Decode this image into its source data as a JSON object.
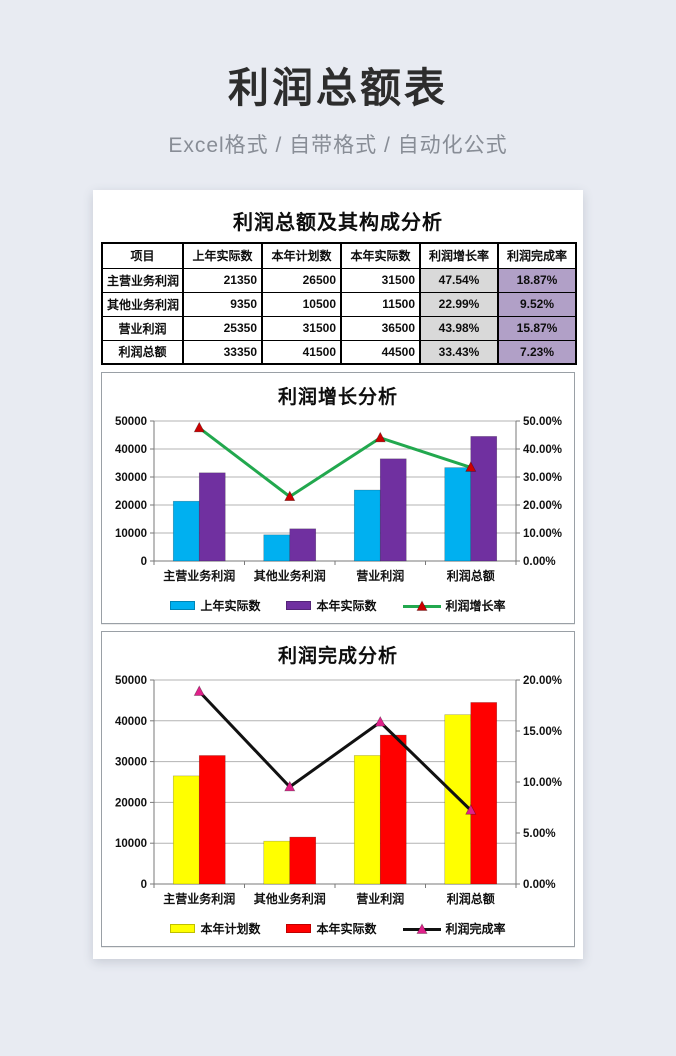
{
  "page": {
    "title": "利润总额表",
    "subtitle": "Excel格式 / 自带格式 / 自动化公式",
    "background_color": "#e8ebf2",
    "card_color": "#ffffff"
  },
  "table": {
    "title": "利润总额及其构成分析",
    "headers": [
      "项目",
      "上年实际数",
      "本年计划数",
      "本年实际数",
      "利润增长率",
      "利润完成率"
    ],
    "rows": [
      {
        "item": "主营业务利润",
        "prev": "21350",
        "plan": "26500",
        "actual": "31500",
        "growth": "47.54%",
        "completion": "18.87%"
      },
      {
        "item": "其他业务利润",
        "prev": "9350",
        "plan": "10500",
        "actual": "11500",
        "growth": "22.99%",
        "completion": "9.52%"
      },
      {
        "item": "营业利润",
        "prev": "25350",
        "plan": "31500",
        "actual": "36500",
        "growth": "43.98%",
        "completion": "15.87%"
      },
      {
        "item": "利润总额",
        "prev": "33350",
        "plan": "41500",
        "actual": "44500",
        "growth": "33.43%",
        "completion": "7.23%"
      }
    ],
    "growth_col_bg": "#d9d9d9",
    "completion_col_bg": "#b1a0c7"
  },
  "chart_data": [
    {
      "type": "bar",
      "subtype": "bar+line combo, dual axis",
      "title": "利润增长分析",
      "categories": [
        "主营业务利润",
        "其他业务利润",
        "营业利润",
        "利润总额"
      ],
      "series": [
        {
          "name": "上年实际数",
          "kind": "bar",
          "axis": "left",
          "color": "#00b0f0",
          "values": [
            21350,
            9350,
            25350,
            33350
          ]
        },
        {
          "name": "本年实际数",
          "kind": "bar",
          "axis": "left",
          "color": "#7030a0",
          "values": [
            31500,
            11500,
            36500,
            44500
          ]
        },
        {
          "name": "利润增长率",
          "kind": "line",
          "axis": "right",
          "color": "#22a84e",
          "marker_color": "#cc0000",
          "values": [
            47.54,
            22.99,
            43.98,
            33.43
          ]
        }
      ],
      "left_axis": {
        "min": 0,
        "max": 50000,
        "step": 10000,
        "labels": [
          "0",
          "10000",
          "20000",
          "30000",
          "40000",
          "50000"
        ]
      },
      "right_axis": {
        "min": 0,
        "max": 50,
        "step": 10,
        "labels": [
          "0.00%",
          "10.00%",
          "20.00%",
          "30.00%",
          "40.00%",
          "50.00%"
        ]
      },
      "grid": true,
      "legend_position": "bottom"
    },
    {
      "type": "bar",
      "subtype": "bar+line combo, dual axis",
      "title": "利润完成分析",
      "categories": [
        "主营业务利润",
        "其他业务利润",
        "营业利润",
        "利润总额"
      ],
      "series": [
        {
          "name": "本年计划数",
          "kind": "bar",
          "axis": "left",
          "color": "#ffff00",
          "values": [
            26500,
            10500,
            31500,
            41500
          ]
        },
        {
          "name": "本年实际数",
          "kind": "bar",
          "axis": "left",
          "color": "#ff0000",
          "values": [
            31500,
            11500,
            36500,
            44500
          ]
        },
        {
          "name": "利润完成率",
          "kind": "line",
          "axis": "right",
          "color": "#111111",
          "marker_color": "#e0218a",
          "values": [
            18.87,
            9.52,
            15.87,
            7.23
          ]
        }
      ],
      "left_axis": {
        "min": 0,
        "max": 50000,
        "step": 10000,
        "labels": [
          "0",
          "10000",
          "20000",
          "30000",
          "40000",
          "50000"
        ]
      },
      "right_axis": {
        "min": 0,
        "max": 20,
        "step": 5,
        "labels": [
          "0.00%",
          "5.00%",
          "10.00%",
          "15.00%",
          "20.00%"
        ]
      },
      "grid": true,
      "legend_position": "bottom"
    }
  ]
}
